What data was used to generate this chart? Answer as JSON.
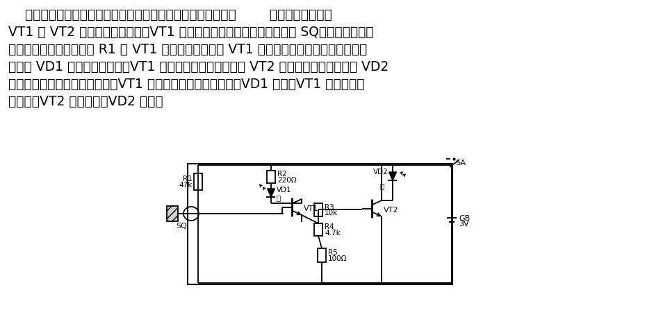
{
  "bg_color": "#ffffff",
  "line_color": "#000000",
  "text_color": "#000000",
  "lines_text": [
    "    该电路仅用一个接点就可以切换红色和绿色两个信号灯，如图        所示。两个三极管",
    "VT1 和 VT2 组成施密特触发器。VT1 的基极偏置电路中串接着磁簧开关 SQ，若有磁体靠近",
    "磁簧开关，电源即经电阻 R1 向 VT1 提供基极电流，使 VT1 导通，集电极电流流过红色发光",
    "二极管 VD1 使其发光。此时，VT1 的集电极为低电位，所以 VT2 截止，绿色发光二极管 VD2",
    "熄灭。当磁体远离磁簧开关时，VT1 基极断开而处于截止状态、VD1 熄灭，VT1 集电极变为",
    "高电位，VT2 变为导通，VD2 发光。"
  ]
}
